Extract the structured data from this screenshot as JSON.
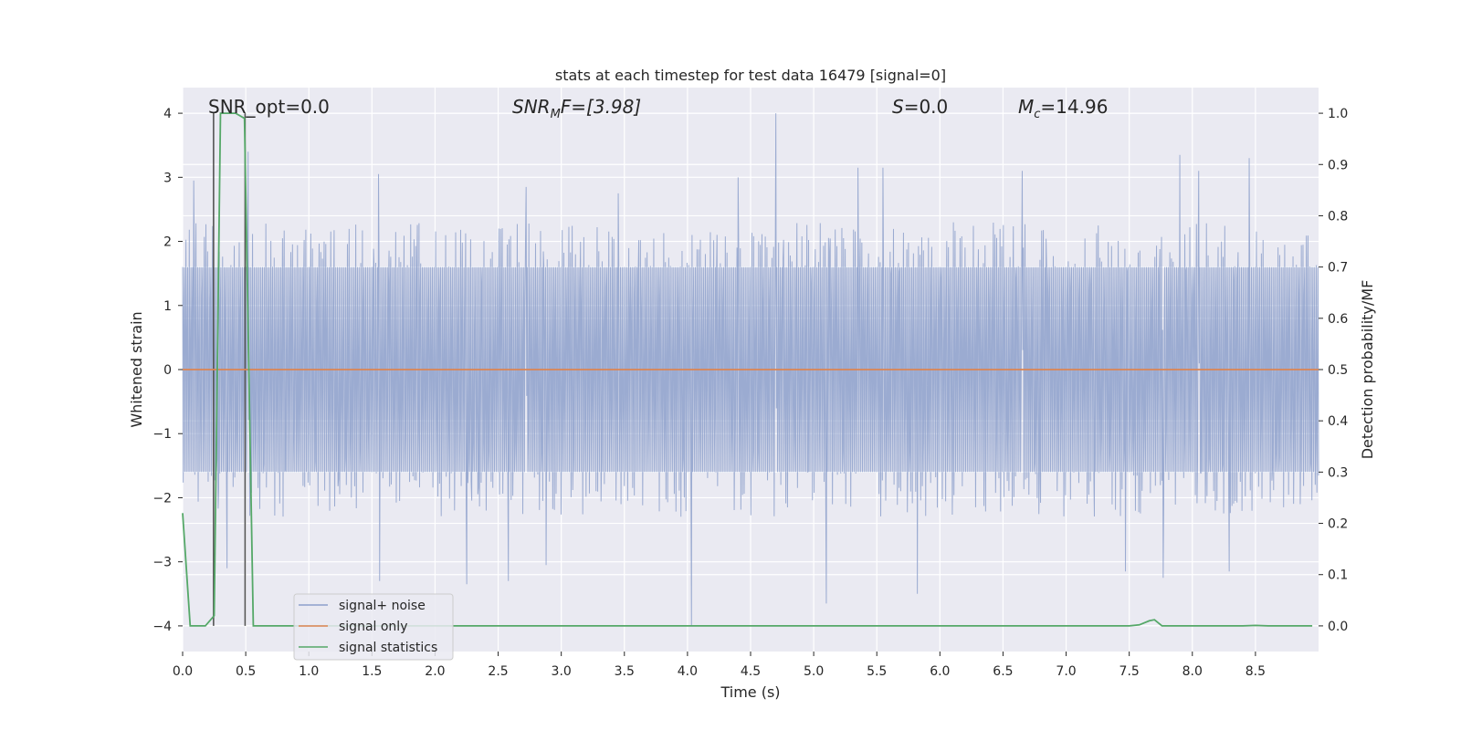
{
  "chart_data": {
    "type": "line",
    "title": "stats at each timestep for test data 16479 [signal=0]",
    "xlabel": "Time (s)",
    "ylabel_left": "Whitened strain",
    "ylabel_right": "Detection probability/MF",
    "xlim": [
      0.0,
      9.0
    ],
    "ylim_left": [
      -4.4,
      4.4
    ],
    "ylim_right": [
      -0.05,
      1.05
    ],
    "grid": true,
    "legend_placement": "lower-left",
    "x_ticks": [
      0.0,
      0.5,
      1.0,
      1.5,
      2.0,
      2.5,
      3.0,
      3.5,
      4.0,
      4.5,
      5.0,
      5.5,
      6.0,
      6.5,
      7.0,
      7.5,
      8.0,
      8.5
    ],
    "x_tick_labels": [
      "0.0",
      "0.5",
      "1.0",
      "1.5",
      "2.0",
      "2.5",
      "3.0",
      "3.5",
      "4.0",
      "4.5",
      "5.0",
      "5.5",
      "6.0",
      "6.5",
      "7.0",
      "7.5",
      "8.0",
      "8.5"
    ],
    "y_ticks_left": [
      -4,
      -3,
      -2,
      -1,
      0,
      1,
      2,
      3,
      4
    ],
    "y_tick_labels_left": [
      "−4",
      "−3",
      "−2",
      "−1",
      "0",
      "1",
      "2",
      "3",
      "4"
    ],
    "y_ticks_right": [
      0.0,
      0.1,
      0.2,
      0.3,
      0.4,
      0.5,
      0.6,
      0.7,
      0.8,
      0.9,
      1.0
    ],
    "y_tick_labels_right": [
      "0.0",
      "0.1",
      "0.2",
      "0.3",
      "0.4",
      "0.5",
      "0.6",
      "0.7",
      "0.8",
      "0.9",
      "1.0"
    ],
    "annotations": {
      "snr_opt": "SNR_opt=0.0",
      "snr_mf_label": "SNR",
      "snr_mf_sub": "M",
      "snr_mf_rest": "F=[3.98]",
      "s_label": "S",
      "s_value": "=0.0",
      "mc_label": "M",
      "mc_sub": "c",
      "mc_value": "=14.96"
    },
    "vertical_lines_x": [
      0.245,
      0.495
    ],
    "noise_series": {
      "name": "signal+ noise",
      "color": "#8da0cb",
      "duration_s": 9.0,
      "samples": 2048,
      "envelope_pos": 1.6,
      "envelope_neg": -1.6,
      "spikes": [
        {
          "x": 0.09,
          "y": 2.95
        },
        {
          "x": 0.52,
          "y": 3.4
        },
        {
          "x": 1.55,
          "y": 3.05
        },
        {
          "x": 2.72,
          "y": 2.85
        },
        {
          "x": 3.45,
          "y": 2.75
        },
        {
          "x": 4.03,
          "y": -4.0
        },
        {
          "x": 4.7,
          "y": 4.0
        },
        {
          "x": 4.4,
          "y": 3.0
        },
        {
          "x": 5.1,
          "y": -3.65
        },
        {
          "x": 5.82,
          "y": -3.5
        },
        {
          "x": 5.35,
          "y": 3.15
        },
        {
          "x": 5.55,
          "y": 3.15
        },
        {
          "x": 7.47,
          "y": -3.15
        },
        {
          "x": 7.77,
          "y": -3.25
        },
        {
          "x": 7.9,
          "y": 3.35
        },
        {
          "x": 8.45,
          "y": 3.3
        },
        {
          "x": 8.05,
          "y": 3.1
        },
        {
          "x": 1.56,
          "y": -3.3
        },
        {
          "x": 2.25,
          "y": -3.35
        },
        {
          "x": 2.58,
          "y": -3.3
        },
        {
          "x": 0.35,
          "y": -3.1
        },
        {
          "x": 8.29,
          "y": -3.15
        },
        {
          "x": 6.65,
          "y": 3.1
        },
        {
          "x": 2.88,
          "y": -3.05
        }
      ]
    },
    "series": [
      {
        "name": "signal only",
        "color": "#dd8452",
        "axis": "left",
        "x": [
          0.0,
          9.0
        ],
        "y": [
          0.0,
          0.0
        ]
      },
      {
        "name": "signal statistics",
        "color": "#55a868",
        "axis": "right",
        "x": [
          0.0,
          0.06,
          0.18,
          0.25,
          0.3,
          0.42,
          0.49,
          0.56,
          7.5,
          7.58,
          7.66,
          7.7,
          7.76,
          7.85,
          8.4,
          8.5,
          8.6,
          8.95
        ],
        "y": [
          0.22,
          0.0,
          0.0,
          0.02,
          1.0,
          1.0,
          0.99,
          0.0,
          0.0,
          0.002,
          0.01,
          0.012,
          0.0,
          0.0,
          0.0,
          0.001,
          0.0,
          0.0
        ]
      }
    ]
  }
}
